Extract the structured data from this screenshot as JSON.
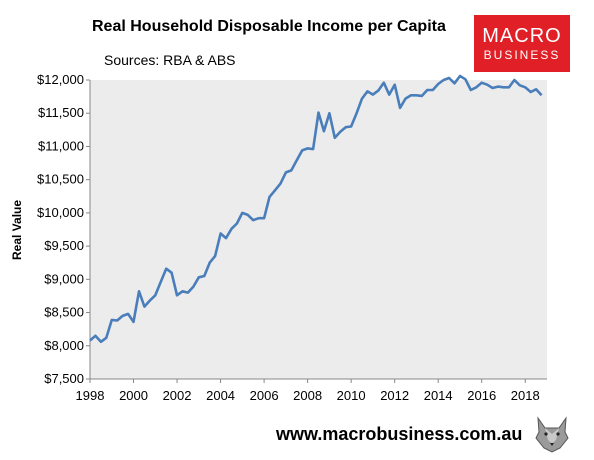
{
  "header": {
    "title": "Real Household Disposable Income per Capita",
    "sources": "Sources: RBA & ABS"
  },
  "logo": {
    "line1": "MACRO",
    "line2": "BUSINESS",
    "color": "#e01f26"
  },
  "footer": {
    "url": "www.macrobusiness.com.au"
  },
  "chart_data": {
    "type": "line",
    "title": "Real Household Disposable Income per Capita",
    "ylabel": "Real Value",
    "xlabel": "",
    "xlim": [
      1998,
      2019
    ],
    "ylim": [
      7500,
      12000
    ],
    "grid": false,
    "plot_background": "#ececec",
    "line_color": "#4a7ebb",
    "x_ticks": [
      "1998",
      "2000",
      "2002",
      "2004",
      "2006",
      "2008",
      "2010",
      "2012",
      "2014",
      "2016",
      "2018"
    ],
    "y_ticks": [
      "$7,500",
      "$8,000",
      "$8,500",
      "$9,000",
      "$9,500",
      "$10,000",
      "$10,500",
      "$11,000",
      "$11,500",
      "$12,000"
    ],
    "series": [
      {
        "x": [
          1998.0,
          1998.25,
          1998.5,
          1998.75,
          1999.0,
          1999.25,
          1999.5,
          1999.75,
          2000.0,
          2000.25,
          2000.5,
          2000.75,
          2001.0,
          2001.25,
          2001.5,
          2001.75,
          2002.0,
          2002.25,
          2002.5,
          2002.75,
          2003.0,
          2003.25,
          2003.5,
          2003.75,
          2004.0,
          2004.25,
          2004.5,
          2004.75,
          2005.0,
          2005.25,
          2005.5,
          2005.75,
          2006.0,
          2006.25,
          2006.5,
          2006.75,
          2007.0,
          2007.25,
          2007.5,
          2007.75,
          2008.0,
          2008.25,
          2008.5,
          2008.75,
          2009.0,
          2009.25,
          2009.5,
          2009.75,
          2010.0,
          2010.25,
          2010.5,
          2010.75,
          2011.0,
          2011.25,
          2011.5,
          2011.75,
          2012.0,
          2012.25,
          2012.5,
          2012.75,
          2013.0,
          2013.25,
          2013.5,
          2013.75,
          2014.0,
          2014.25,
          2014.5,
          2014.75,
          2015.0,
          2015.25,
          2015.5,
          2015.75,
          2016.0,
          2016.25,
          2016.5,
          2016.75,
          2017.0,
          2017.25,
          2017.5,
          2017.75,
          2018.0,
          2018.25,
          2018.5,
          2018.75
        ],
        "y": [
          8080,
          8150,
          8060,
          8120,
          8390,
          8380,
          8450,
          8480,
          8360,
          8820,
          8590,
          8680,
          8760,
          8960,
          9160,
          9100,
          8760,
          8820,
          8800,
          8890,
          9030,
          9050,
          9250,
          9350,
          9690,
          9620,
          9760,
          9840,
          10000,
          9970,
          9890,
          9920,
          9920,
          10240,
          10340,
          10440,
          10610,
          10640,
          10790,
          10940,
          10970,
          10960,
          11510,
          11230,
          11500,
          11130,
          11220,
          11290,
          11300,
          11500,
          11720,
          11830,
          11780,
          11840,
          11960,
          11780,
          11930,
          11580,
          11720,
          11770,
          11770,
          11760,
          11850,
          11850,
          11940,
          12000,
          12030,
          11950,
          12060,
          12010,
          11850,
          11890,
          11960,
          11930,
          11880,
          11900,
          11890,
          11890,
          12000,
          11920,
          11890,
          11820,
          11860,
          11770
        ]
      }
    ]
  }
}
